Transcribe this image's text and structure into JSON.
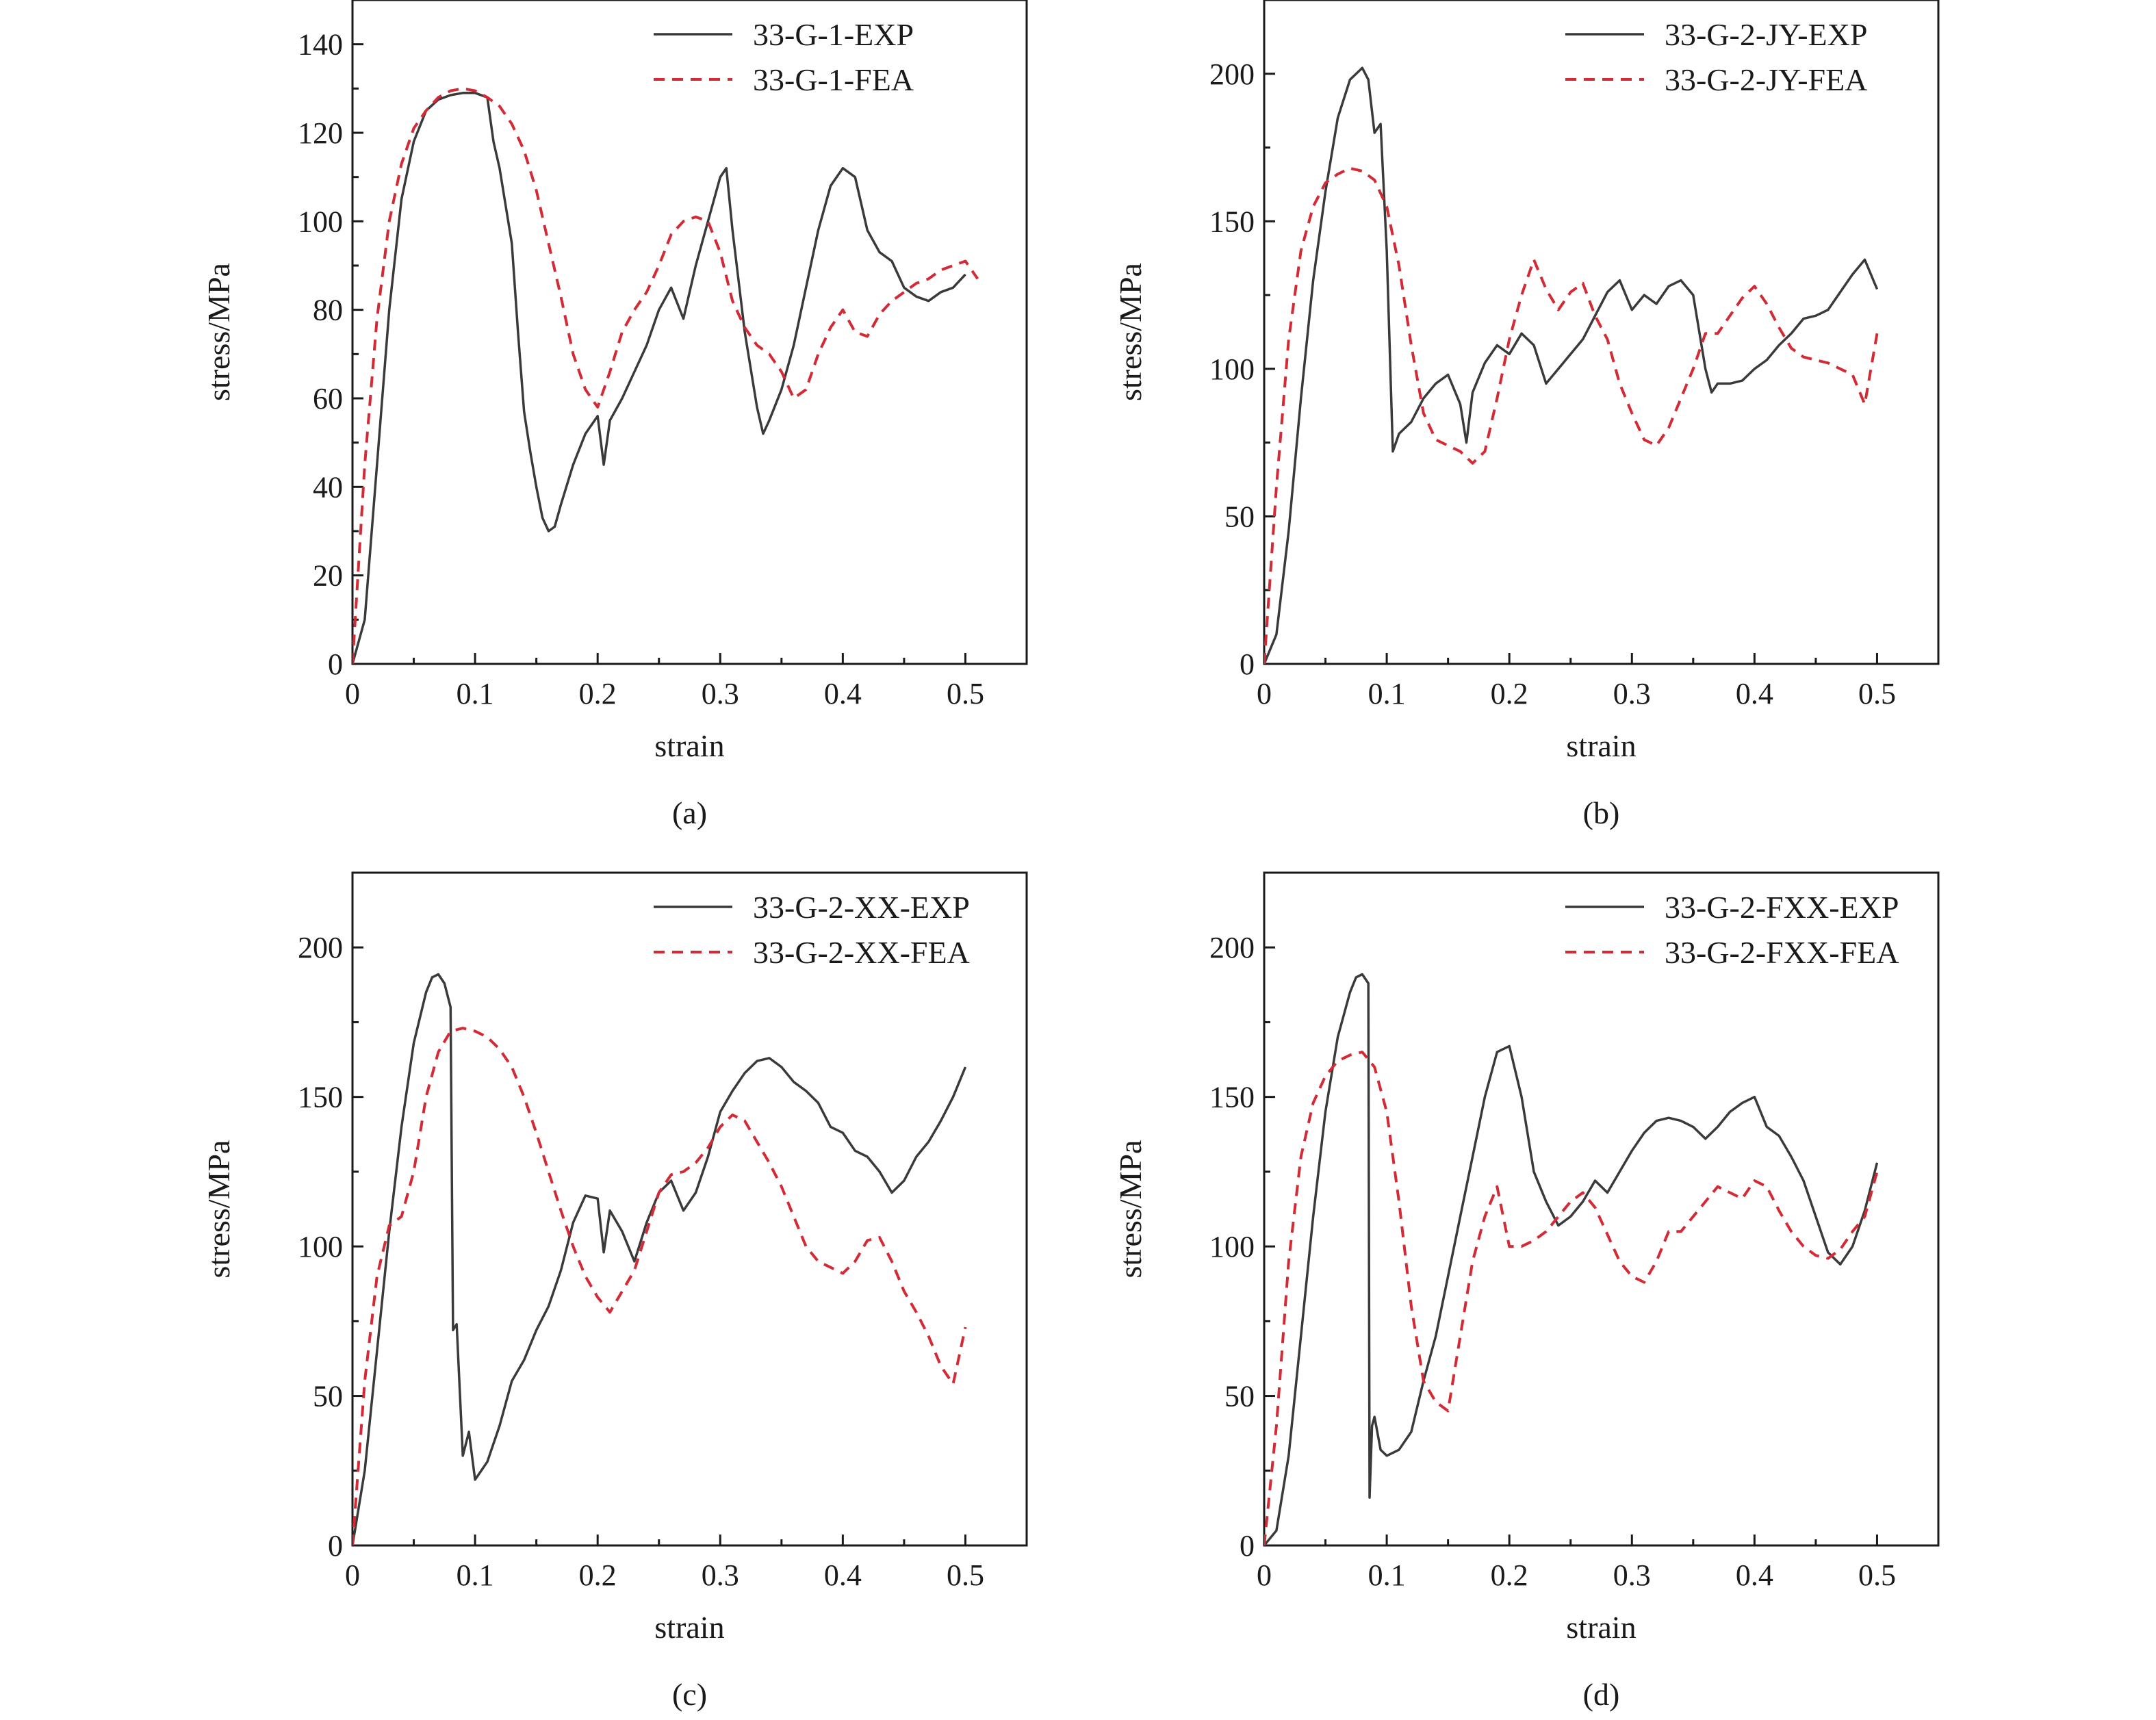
{
  "colors": {
    "exp": "#3a3a3a",
    "fea": "#d42a35",
    "axis": "#1a1a1a"
  },
  "chart_data": [
    {
      "type": "line",
      "panel_label": "(a)",
      "xlabel": "strain",
      "ylabel": "stress/MPa",
      "xlim": [
        0,
        0.55
      ],
      "ylim": [
        0,
        150
      ],
      "xticks": [
        0,
        0.1,
        0.2,
        0.3,
        0.4,
        0.5
      ],
      "xtick_labels": [
        "0",
        "0.1",
        "0.2",
        "0.3",
        "0.4",
        "0.5"
      ],
      "yticks": [
        0,
        20,
        40,
        60,
        80,
        100,
        120,
        140
      ],
      "ytick_labels": [
        "0",
        "20",
        "40",
        "60",
        "80",
        "100",
        "120",
        "140"
      ],
      "legend_position": "top-right",
      "series": [
        {
          "name": "33-G-1-EXP",
          "style": "solid",
          "x": [
            0,
            0.01,
            0.02,
            0.03,
            0.04,
            0.05,
            0.06,
            0.07,
            0.08,
            0.09,
            0.1,
            0.11,
            0.115,
            0.12,
            0.13,
            0.135,
            0.14,
            0.145,
            0.15,
            0.155,
            0.16,
            0.165,
            0.17,
            0.18,
            0.19,
            0.2,
            0.205,
            0.21,
            0.22,
            0.23,
            0.24,
            0.25,
            0.26,
            0.27,
            0.28,
            0.29,
            0.3,
            0.305,
            0.31,
            0.32,
            0.33,
            0.335,
            0.34,
            0.35,
            0.36,
            0.37,
            0.38,
            0.39,
            0.4,
            0.41,
            0.42,
            0.43,
            0.44,
            0.45,
            0.46,
            0.47,
            0.48,
            0.49,
            0.5
          ],
          "y": [
            0,
            10,
            45,
            80,
            105,
            118,
            125,
            127.5,
            128.5,
            129,
            129,
            128,
            118,
            112,
            95,
            75,
            57,
            48,
            40,
            33,
            30,
            31,
            36,
            45,
            52,
            56,
            45,
            55,
            60,
            66,
            72,
            80,
            85,
            78,
            90,
            100,
            110,
            112,
            98,
            75,
            58,
            52,
            55,
            62,
            72,
            85,
            98,
            108,
            112,
            110,
            98,
            93,
            91,
            85,
            83,
            82,
            84,
            85,
            88
          ]
        },
        {
          "name": "33-G-1-FEA",
          "style": "dashed",
          "x": [
            0,
            0.01,
            0.02,
            0.03,
            0.04,
            0.05,
            0.06,
            0.07,
            0.08,
            0.09,
            0.1,
            0.11,
            0.12,
            0.13,
            0.14,
            0.15,
            0.16,
            0.17,
            0.18,
            0.19,
            0.2,
            0.21,
            0.22,
            0.23,
            0.24,
            0.25,
            0.26,
            0.27,
            0.28,
            0.29,
            0.3,
            0.31,
            0.32,
            0.33,
            0.34,
            0.35,
            0.36,
            0.37,
            0.38,
            0.39,
            0.4,
            0.41,
            0.42,
            0.43,
            0.44,
            0.45,
            0.46,
            0.47,
            0.48,
            0.49,
            0.5,
            0.51
          ],
          "y": [
            0,
            45,
            78,
            100,
            113,
            121,
            125,
            128,
            129.5,
            130,
            129.5,
            128,
            126,
            122,
            116,
            107,
            95,
            83,
            70,
            62,
            58,
            66,
            75,
            80,
            84,
            90,
            97,
            100,
            101,
            100,
            93,
            82,
            76,
            72,
            70,
            66,
            60,
            62,
            70,
            76,
            80,
            75,
            74,
            79,
            82,
            84,
            86,
            87,
            89,
            90,
            91,
            87
          ]
        }
      ]
    },
    {
      "type": "line",
      "panel_label": "(b)",
      "xlabel": "strain",
      "ylabel": "stress/MPa",
      "xlim": [
        0,
        0.55
      ],
      "ylim": [
        0,
        225
      ],
      "xticks": [
        0,
        0.1,
        0.2,
        0.3,
        0.4,
        0.5
      ],
      "xtick_labels": [
        "0",
        "0.1",
        "0.2",
        "0.3",
        "0.4",
        "0.5"
      ],
      "yticks": [
        0,
        50,
        100,
        150,
        200
      ],
      "ytick_labels": [
        "0",
        "50",
        "100",
        "150",
        "200"
      ],
      "legend_position": "top-right",
      "series": [
        {
          "name": "33-G-2-JY-EXP",
          "style": "solid",
          "x": [
            0,
            0.01,
            0.02,
            0.03,
            0.04,
            0.05,
            0.06,
            0.07,
            0.08,
            0.085,
            0.09,
            0.095,
            0.1,
            0.105,
            0.11,
            0.12,
            0.13,
            0.14,
            0.15,
            0.16,
            0.165,
            0.17,
            0.18,
            0.19,
            0.2,
            0.21,
            0.22,
            0.23,
            0.24,
            0.25,
            0.26,
            0.27,
            0.28,
            0.29,
            0.3,
            0.31,
            0.32,
            0.33,
            0.34,
            0.35,
            0.36,
            0.365,
            0.37,
            0.38,
            0.39,
            0.4,
            0.41,
            0.42,
            0.43,
            0.44,
            0.45,
            0.46,
            0.47,
            0.48,
            0.49,
            0.5
          ],
          "y": [
            0,
            10,
            45,
            90,
            130,
            160,
            185,
            198,
            202,
            198,
            180,
            183,
            140,
            72,
            78,
            82,
            90,
            95,
            98,
            88,
            75,
            92,
            102,
            108,
            105,
            112,
            108,
            95,
            100,
            105,
            110,
            118,
            126,
            130,
            120,
            125,
            122,
            128,
            130,
            125,
            100,
            92,
            95,
            95,
            96,
            100,
            103,
            108,
            112,
            117,
            118,
            120,
            126,
            132,
            137,
            127
          ]
        },
        {
          "name": "33-G-2-JY-FEA",
          "style": "dashed",
          "x": [
            0,
            0.01,
            0.02,
            0.03,
            0.04,
            0.05,
            0.06,
            0.07,
            0.08,
            0.09,
            0.1,
            0.11,
            0.12,
            0.13,
            0.14,
            0.15,
            0.16,
            0.17,
            0.18,
            0.19,
            0.2,
            0.21,
            0.22,
            0.23,
            0.24,
            0.25,
            0.26,
            0.27,
            0.28,
            0.29,
            0.3,
            0.31,
            0.32,
            0.33,
            0.34,
            0.35,
            0.36,
            0.37,
            0.38,
            0.39,
            0.4,
            0.41,
            0.42,
            0.43,
            0.44,
            0.45,
            0.46,
            0.47,
            0.48,
            0.49,
            0.5
          ],
          "y": [
            0,
            60,
            110,
            140,
            155,
            163,
            166,
            168,
            167,
            164,
            155,
            135,
            108,
            85,
            76,
            74,
            72,
            68,
            72,
            90,
            110,
            125,
            137,
            127,
            120,
            126,
            129,
            118,
            110,
            95,
            85,
            76,
            74,
            80,
            90,
            100,
            112,
            112,
            118,
            124,
            128,
            122,
            114,
            107,
            104,
            103,
            102,
            100,
            98,
            88,
            112
          ]
        }
      ]
    },
    {
      "type": "line",
      "panel_label": "(c)",
      "xlabel": "strain",
      "ylabel": "stress/MPa",
      "xlim": [
        0,
        0.55
      ],
      "ylim": [
        0,
        225
      ],
      "xticks": [
        0,
        0.1,
        0.2,
        0.3,
        0.4,
        0.5
      ],
      "xtick_labels": [
        "0",
        "0.1",
        "0.2",
        "0.3",
        "0.4",
        "0.5"
      ],
      "yticks": [
        0,
        50,
        100,
        150,
        200
      ],
      "ytick_labels": [
        "0",
        "50",
        "100",
        "150",
        "200"
      ],
      "legend_position": "top-right",
      "series": [
        {
          "name": "33-G-2-XX-EXP",
          "style": "solid",
          "x": [
            0,
            0.01,
            0.02,
            0.03,
            0.04,
            0.05,
            0.06,
            0.065,
            0.07,
            0.075,
            0.08,
            0.082,
            0.085,
            0.09,
            0.095,
            0.1,
            0.11,
            0.12,
            0.13,
            0.14,
            0.15,
            0.16,
            0.17,
            0.18,
            0.19,
            0.2,
            0.205,
            0.21,
            0.22,
            0.23,
            0.24,
            0.25,
            0.26,
            0.27,
            0.28,
            0.29,
            0.3,
            0.31,
            0.32,
            0.33,
            0.34,
            0.35,
            0.36,
            0.37,
            0.38,
            0.39,
            0.4,
            0.41,
            0.42,
            0.43,
            0.44,
            0.45,
            0.46,
            0.47,
            0.48,
            0.49,
            0.5
          ],
          "y": [
            0,
            25,
            65,
            105,
            140,
            168,
            185,
            190,
            191,
            188,
            180,
            72,
            74,
            30,
            38,
            22,
            28,
            40,
            55,
            62,
            72,
            80,
            92,
            108,
            117,
            116,
            98,
            112,
            105,
            95,
            108,
            118,
            122,
            112,
            118,
            130,
            145,
            152,
            158,
            162,
            163,
            160,
            155,
            152,
            148,
            140,
            138,
            132,
            130,
            125,
            118,
            122,
            130,
            135,
            142,
            150,
            160
          ]
        },
        {
          "name": "33-G-2-XX-FEA",
          "style": "dashed",
          "x": [
            0,
            0.01,
            0.02,
            0.03,
            0.04,
            0.05,
            0.06,
            0.07,
            0.08,
            0.09,
            0.1,
            0.11,
            0.12,
            0.13,
            0.14,
            0.15,
            0.16,
            0.17,
            0.18,
            0.19,
            0.2,
            0.21,
            0.22,
            0.23,
            0.24,
            0.25,
            0.26,
            0.27,
            0.28,
            0.29,
            0.3,
            0.31,
            0.32,
            0.33,
            0.34,
            0.35,
            0.36,
            0.37,
            0.38,
            0.39,
            0.4,
            0.41,
            0.42,
            0.43,
            0.44,
            0.45,
            0.46,
            0.47,
            0.48,
            0.49,
            0.5
          ],
          "y": [
            0,
            55,
            90,
            107,
            110,
            125,
            150,
            165,
            172,
            173,
            172,
            170,
            166,
            160,
            150,
            138,
            125,
            112,
            100,
            90,
            83,
            78,
            85,
            92,
            105,
            118,
            124,
            125,
            128,
            133,
            140,
            144,
            142,
            135,
            128,
            120,
            110,
            100,
            95,
            93,
            91,
            95,
            102,
            103,
            95,
            85,
            78,
            70,
            60,
            54,
            73
          ]
        }
      ]
    },
    {
      "type": "line",
      "panel_label": "(d)",
      "xlabel": "strain",
      "ylabel": "stress/MPa",
      "xlim": [
        0,
        0.55
      ],
      "ylim": [
        0,
        225
      ],
      "xticks": [
        0,
        0.1,
        0.2,
        0.3,
        0.4,
        0.5
      ],
      "xtick_labels": [
        "0",
        "0.1",
        "0.2",
        "0.3",
        "0.4",
        "0.5"
      ],
      "yticks": [
        0,
        50,
        100,
        150,
        200
      ],
      "ytick_labels": [
        "0",
        "50",
        "100",
        "150",
        "200"
      ],
      "legend_position": "top-right",
      "series": [
        {
          "name": "33-G-2-FXX-EXP",
          "style": "solid",
          "x": [
            0,
            0.01,
            0.02,
            0.03,
            0.04,
            0.05,
            0.06,
            0.07,
            0.075,
            0.08,
            0.085,
            0.086,
            0.088,
            0.09,
            0.095,
            0.1,
            0.11,
            0.12,
            0.13,
            0.14,
            0.15,
            0.16,
            0.17,
            0.18,
            0.19,
            0.2,
            0.21,
            0.22,
            0.23,
            0.24,
            0.25,
            0.26,
            0.27,
            0.28,
            0.29,
            0.3,
            0.31,
            0.32,
            0.33,
            0.34,
            0.35,
            0.36,
            0.37,
            0.38,
            0.39,
            0.4,
            0.41,
            0.42,
            0.43,
            0.44,
            0.45,
            0.46,
            0.47,
            0.48,
            0.49,
            0.5
          ],
          "y": [
            0,
            5,
            30,
            70,
            110,
            145,
            170,
            185,
            190,
            191,
            188,
            16,
            40,
            43,
            32,
            30,
            32,
            38,
            55,
            70,
            90,
            110,
            130,
            150,
            165,
            167,
            150,
            125,
            115,
            107,
            110,
            115,
            122,
            118,
            125,
            132,
            138,
            142,
            143,
            142,
            140,
            136,
            140,
            145,
            148,
            150,
            140,
            137,
            130,
            122,
            110,
            98,
            94,
            100,
            112,
            128
          ]
        },
        {
          "name": "33-G-2-FXX-FEA",
          "style": "dashed",
          "x": [
            0,
            0.01,
            0.02,
            0.03,
            0.04,
            0.05,
            0.06,
            0.07,
            0.08,
            0.09,
            0.1,
            0.11,
            0.12,
            0.13,
            0.14,
            0.15,
            0.16,
            0.17,
            0.18,
            0.19,
            0.2,
            0.21,
            0.22,
            0.23,
            0.24,
            0.25,
            0.26,
            0.27,
            0.28,
            0.29,
            0.3,
            0.31,
            0.32,
            0.33,
            0.34,
            0.35,
            0.36,
            0.37,
            0.38,
            0.39,
            0.4,
            0.41,
            0.42,
            0.43,
            0.44,
            0.45,
            0.46,
            0.47,
            0.48,
            0.49,
            0.5
          ],
          "y": [
            0,
            40,
            95,
            130,
            148,
            157,
            162,
            164,
            165,
            160,
            145,
            115,
            80,
            55,
            48,
            45,
            70,
            95,
            110,
            120,
            100,
            100,
            102,
            105,
            110,
            115,
            118,
            113,
            104,
            95,
            90,
            88,
            95,
            105,
            105,
            110,
            115,
            120,
            118,
            116,
            122,
            120,
            112,
            105,
            100,
            97,
            96,
            99,
            105,
            110,
            125
          ]
        }
      ]
    }
  ]
}
